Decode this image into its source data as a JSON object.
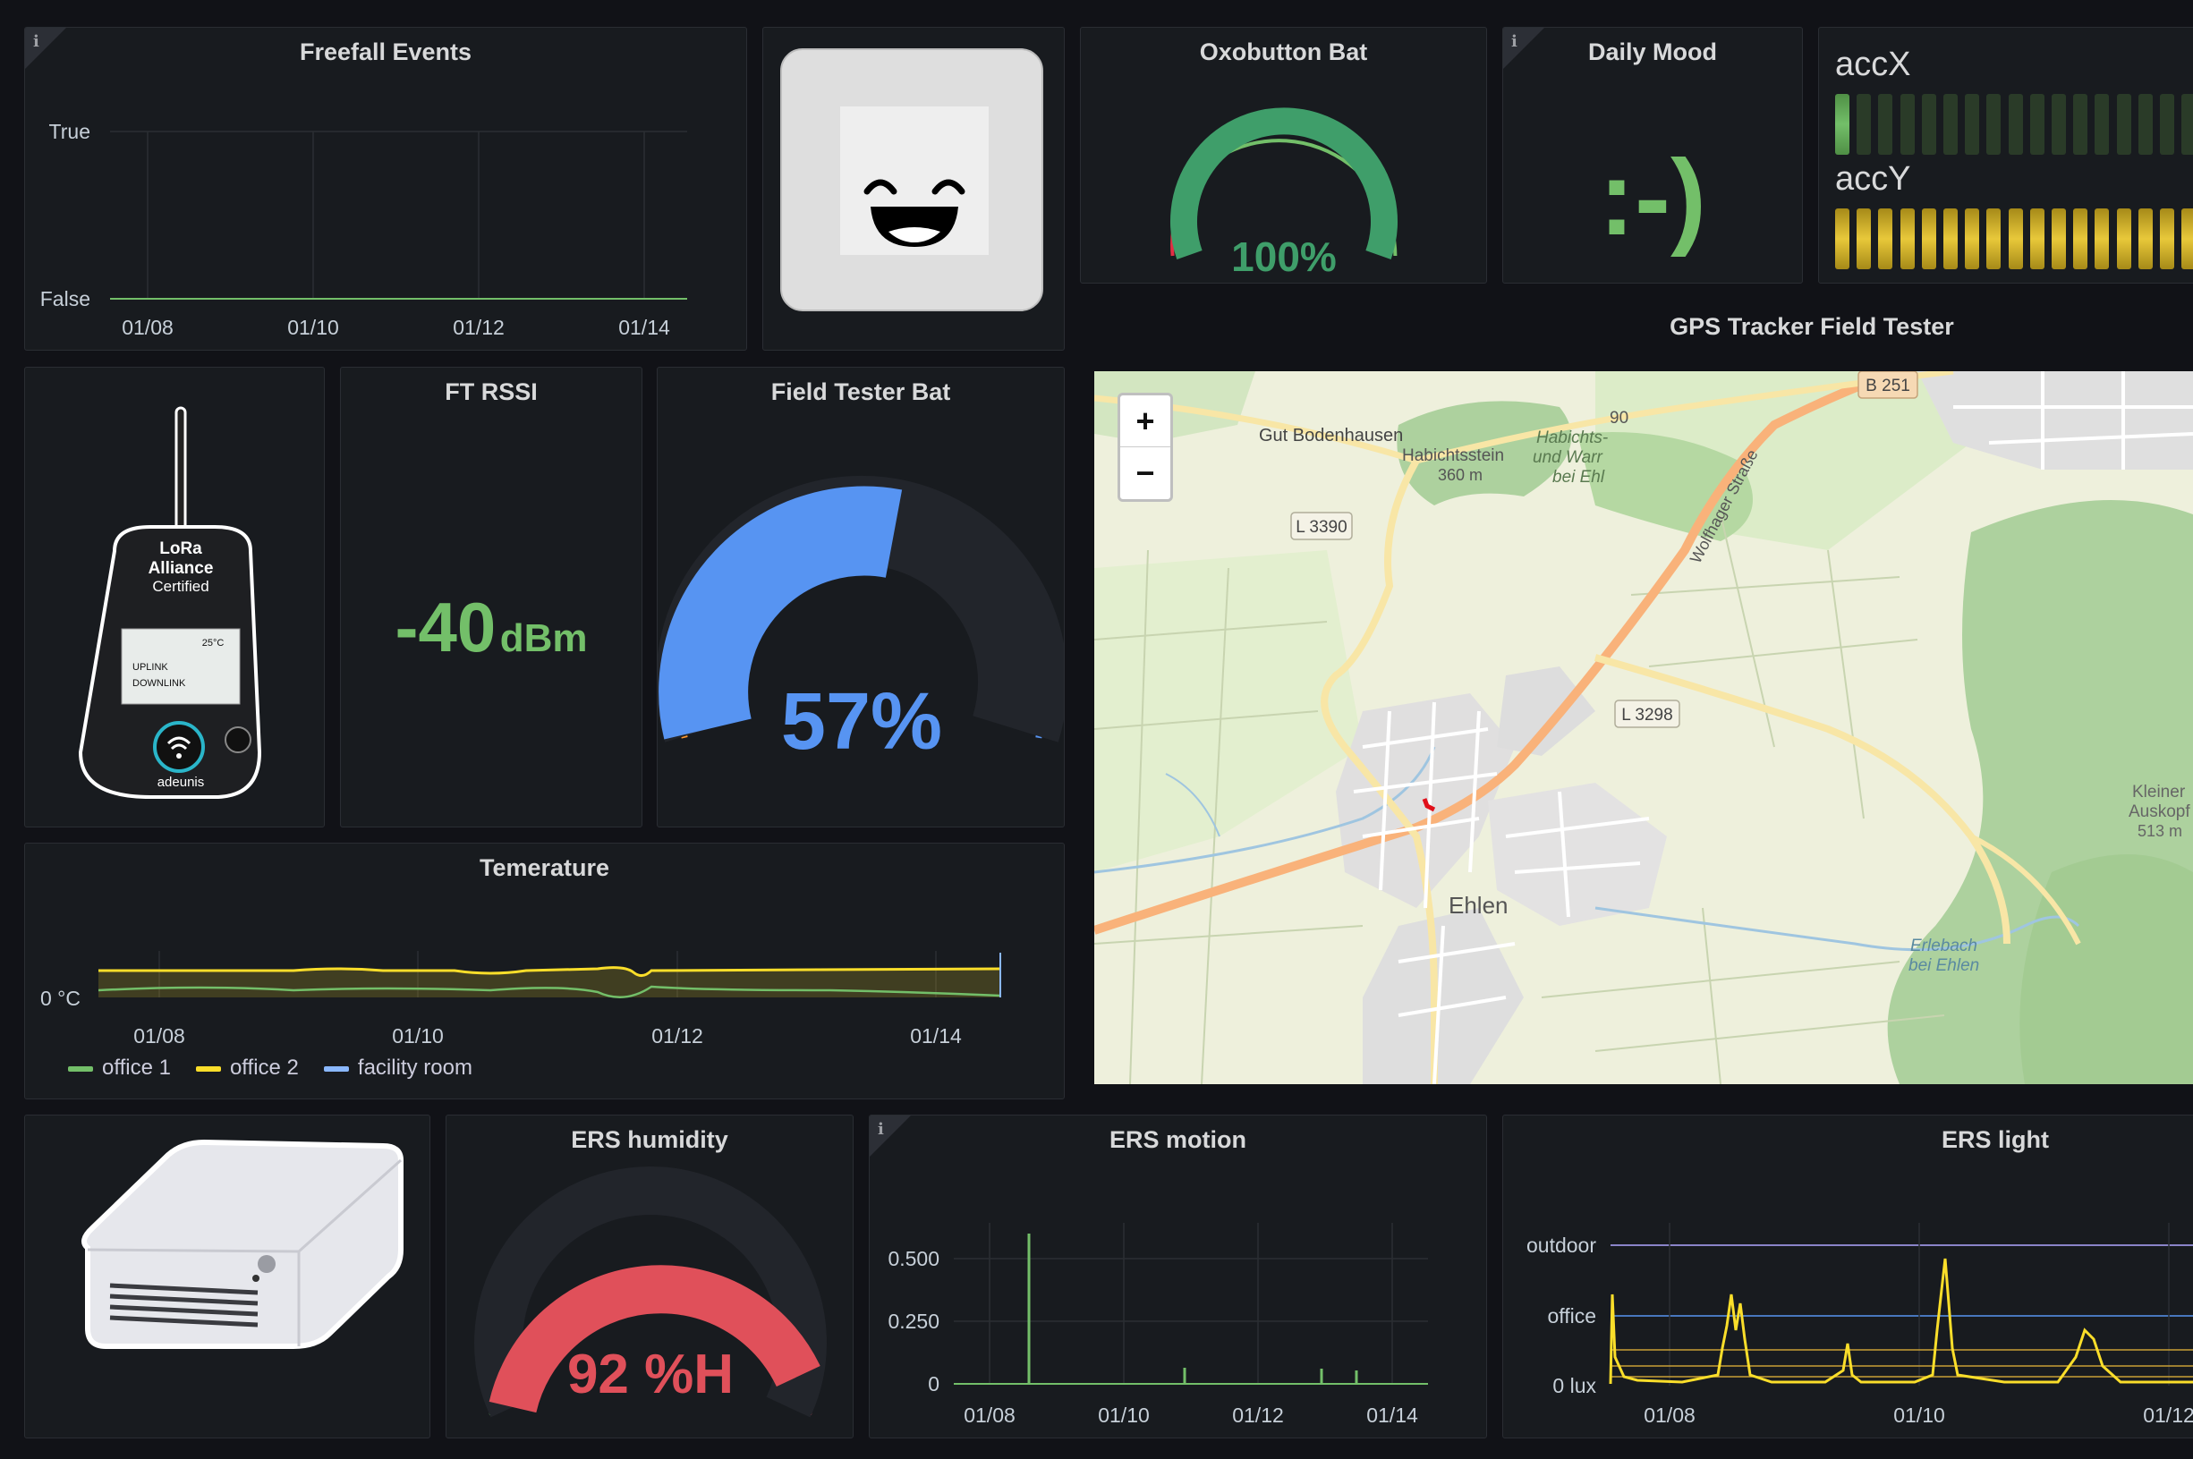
{
  "colors": {
    "green": "#73bf69",
    "yellow": "#fade2a",
    "blue": "#5794f2",
    "red": "#e0505a",
    "orange": "#ff9830"
  },
  "freefall": {
    "title": "Freefall Events",
    "y_labels": [
      "True",
      "False"
    ],
    "x_labels": [
      "01/08",
      "01/10",
      "01/12",
      "01/14"
    ]
  },
  "smiley_image": {
    "icon": "smiley-face-icon"
  },
  "oxobutton": {
    "title": "Oxobutton Bat",
    "value_text": "100%",
    "value": 100
  },
  "daily_mood": {
    "title": "Daily Mood",
    "value_text": ":-)"
  },
  "acc": {
    "x_label": "accX",
    "y_label": "accY",
    "x_fill_fraction": 0.04,
    "y_fill_fraction": 1.0
  },
  "gps": {
    "title": "GPS Tracker Field Tester",
    "zoom_in": "+",
    "zoom_out": "−",
    "map_labels": {
      "gut": "Gut Bodenhausen",
      "habichtsstein": "Habichtsstein",
      "habichtsstein_alt": "360 m",
      "habichts": "Habichts-",
      "und_warr": "und Warr",
      "bei_ehl": "bei Ehl",
      "l3390": "L 3390",
      "l3298": "L 3298",
      "b251": "B 251",
      "road_90": "90",
      "wolfhager": "Wolfhager Straße",
      "ehlen": "Ehlen",
      "kleiner": "Kleiner",
      "auskopf": "Auskopf",
      "auskopf_alt": "513 m",
      "erlebach": "Erlebach",
      "bei_ehlen": "bei Ehlen"
    }
  },
  "device_lora": {
    "brand1": "LoRa",
    "brand2": "Alliance",
    "brand3": "Certified",
    "screen_temp": "25°C",
    "uplink": "UPLINK",
    "downlink": "DOWNLINK",
    "maker": "adeunis"
  },
  "ft_rssi": {
    "title": "FT RSSI",
    "value": "-40",
    "unit": "dBm"
  },
  "field_tester_bat": {
    "title": "Field Tester Bat",
    "value_text": "57%",
    "value": 57
  },
  "temperature": {
    "title": "Temerature",
    "y_label": "0 °C",
    "x_labels": [
      "01/08",
      "01/10",
      "01/12",
      "01/14"
    ],
    "legend": [
      {
        "name": "office 1",
        "color": "#73bf69"
      },
      {
        "name": "office 2",
        "color": "#fade2a"
      },
      {
        "name": "facility room",
        "color": "#8ab8ff"
      }
    ]
  },
  "ers_humidity": {
    "title": "ERS humidity",
    "value_text": "92 %H",
    "value": 92
  },
  "ers_motion": {
    "title": "ERS motion",
    "y_labels": [
      "0.500",
      "0.250",
      "0"
    ],
    "x_labels": [
      "01/08",
      "01/10",
      "01/12",
      "01/14"
    ]
  },
  "ers_light": {
    "title": "ERS light",
    "y_labels": [
      "outdoor",
      "office",
      "0 lux"
    ],
    "x_labels": [
      "01/08",
      "01/10",
      "01/12"
    ]
  }
}
